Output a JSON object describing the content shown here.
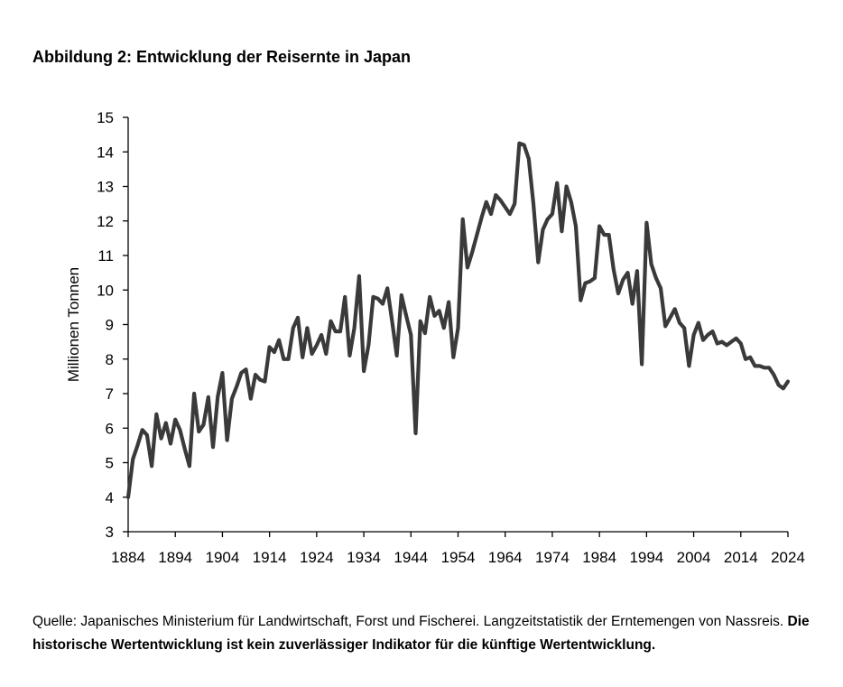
{
  "title": "Abbildung 2: Entwicklung der Reisernte in Japan",
  "source_text": "Quelle: Japanisches Ministerium für Landwirtschaft, Forst und Fischerei. Langzeitstatistik der Erntemengen von Nassreis.",
  "disclaimer": "Die historische Wertentwicklung ist kein zuverlässiger Indikator für die künftige Wertentwicklung.",
  "chart_data": {
    "type": "line",
    "title": "",
    "xlabel": "",
    "ylabel": "Millionen Tonnen",
    "xlim": [
      1884,
      2024
    ],
    "ylim": [
      3,
      15
    ],
    "xticks": [
      1884,
      1894,
      1904,
      1914,
      1924,
      1934,
      1944,
      1954,
      1964,
      1974,
      1984,
      1994,
      2004,
      2014,
      2024
    ],
    "yticks": [
      3,
      4,
      5,
      6,
      7,
      8,
      9,
      10,
      11,
      12,
      13,
      14,
      15
    ],
    "grid": false,
    "legend": "none",
    "line_color": "#3a3a3a",
    "series": [
      {
        "x": [
          1884,
          1885,
          1886,
          1887,
          1888,
          1889,
          1890,
          1891,
          1892,
          1893,
          1894,
          1895,
          1896,
          1897,
          1898,
          1899,
          1900,
          1901,
          1902,
          1903,
          1904,
          1905,
          1906,
          1907,
          1908,
          1909,
          1910,
          1911,
          1912,
          1913,
          1914,
          1915,
          1916,
          1917,
          1918,
          1919,
          1920,
          1921,
          1922,
          1923,
          1924,
          1925,
          1926,
          1927,
          1928,
          1929,
          1930,
          1931,
          1932,
          1933,
          1934,
          1935,
          1936,
          1937,
          1938,
          1939,
          1940,
          1941,
          1942,
          1943,
          1944,
          1945,
          1946,
          1947,
          1948,
          1949,
          1950,
          1951,
          1952,
          1953,
          1954,
          1955,
          1956,
          1957,
          1958,
          1959,
          1960,
          1961,
          1962,
          1963,
          1964,
          1965,
          1966,
          1967,
          1968,
          1969,
          1970,
          1971,
          1972,
          1973,
          1974,
          1975,
          1976,
          1977,
          1978,
          1979,
          1980,
          1981,
          1982,
          1983,
          1984,
          1985,
          1986,
          1987,
          1988,
          1989,
          1990,
          1991,
          1992,
          1993,
          1994,
          1995,
          1996,
          1997,
          1998,
          1999,
          2000,
          2001,
          2002,
          2003,
          2004,
          2005,
          2006,
          2007,
          2008,
          2009,
          2010,
          2011,
          2012,
          2013,
          2014,
          2015,
          2016,
          2017,
          2018,
          2019,
          2020,
          2021,
          2022,
          2023,
          2024
        ],
        "values": [
          4.0,
          5.1,
          5.5,
          5.95,
          5.8,
          4.9,
          6.4,
          5.7,
          6.15,
          5.55,
          6.25,
          5.95,
          5.4,
          4.9,
          7.0,
          5.9,
          6.1,
          6.9,
          5.45,
          6.9,
          7.6,
          5.65,
          6.85,
          7.2,
          7.6,
          7.7,
          6.85,
          7.55,
          7.4,
          7.35,
          8.35,
          8.2,
          8.55,
          8.0,
          8.0,
          8.9,
          9.2,
          8.05,
          8.9,
          8.15,
          8.4,
          8.7,
          8.15,
          9.1,
          8.8,
          8.8,
          9.8,
          8.1,
          8.9,
          10.4,
          7.65,
          8.4,
          9.8,
          9.75,
          9.6,
          10.05,
          9.1,
          8.1,
          9.85,
          9.25,
          8.7,
          5.85,
          9.1,
          8.75,
          9.8,
          9.25,
          9.4,
          8.9,
          9.65,
          8.05,
          8.9,
          12.05,
          10.65,
          11.1,
          11.6,
          12.1,
          12.55,
          12.2,
          12.75,
          12.6,
          12.4,
          12.2,
          12.5,
          14.25,
          14.2,
          13.8,
          12.5,
          10.8,
          11.75,
          12.05,
          12.2,
          13.1,
          11.7,
          13.0,
          12.55,
          11.85,
          9.7,
          10.2,
          10.25,
          10.35,
          11.85,
          11.6,
          11.6,
          10.6,
          9.9,
          10.3,
          10.5,
          9.6,
          10.55,
          7.85,
          11.95,
          10.75,
          10.35,
          10.05,
          8.95,
          9.2,
          9.45,
          9.05,
          8.9,
          7.8,
          8.7,
          9.05,
          8.55,
          8.7,
          8.8,
          8.45,
          8.5,
          8.4,
          8.5,
          8.6,
          8.45,
          8.0,
          8.05,
          7.8,
          7.8,
          7.75,
          7.75,
          7.55,
          7.25,
          7.15,
          7.35
        ]
      }
    ]
  }
}
